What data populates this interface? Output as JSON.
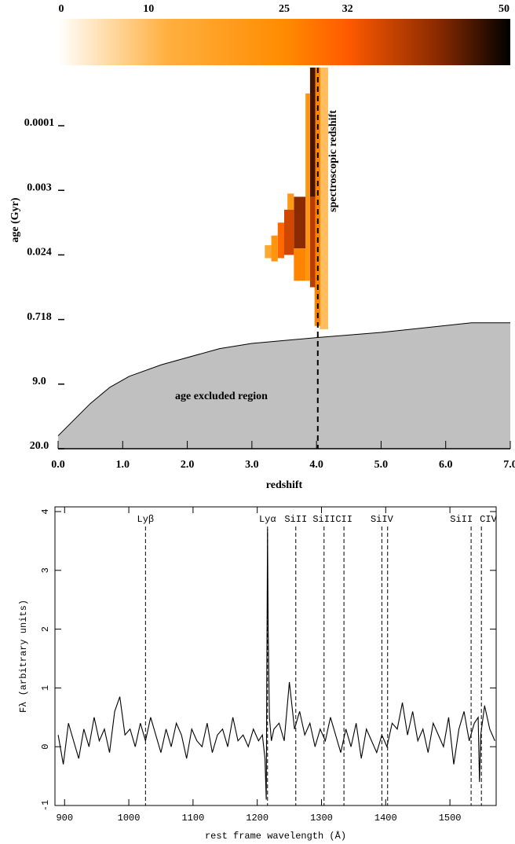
{
  "chart_data": [
    {
      "type": "heatmap",
      "xlabel": "redshift",
      "ylabel": "age (Gyr)",
      "xlim": [
        0,
        7
      ],
      "xticks": [
        {
          "value": 0,
          "label": "0.0"
        },
        {
          "value": 1,
          "label": "1.0"
        },
        {
          "value": 2,
          "label": "2.0"
        },
        {
          "value": 3,
          "label": "3.0"
        },
        {
          "value": 4,
          "label": "4.0"
        },
        {
          "value": 5,
          "label": "5.0"
        },
        {
          "value": 6,
          "label": "6.0"
        },
        {
          "value": 7,
          "label": "7.0"
        }
      ],
      "ylim": [
        0,
        5.9
      ],
      "yticks": [
        {
          "value": 0,
          "label": "20.0"
        },
        {
          "value": 1,
          "label": "9.0"
        },
        {
          "value": 2,
          "label": "0.718"
        },
        {
          "value": 3,
          "label": "0.024"
        },
        {
          "value": 4,
          "label": "0.003"
        },
        {
          "value": 5,
          "label": "0.0001"
        }
      ],
      "colorbar": {
        "lim": [
          0,
          50
        ],
        "ticks": [
          0,
          10,
          25,
          32,
          50
        ]
      },
      "colormap": [
        [
          0,
          "#ffffff"
        ],
        [
          12,
          "#ffb040"
        ],
        [
          25,
          "#ff8c00"
        ],
        [
          32,
          "#ff5a00"
        ],
        [
          42,
          "#8a2a00"
        ],
        [
          50,
          "#000000"
        ]
      ],
      "cells": [
        [
          4.05,
          4.18,
          1.85,
          5.9,
          10
        ],
        [
          3.97,
          4.06,
          1.9,
          5.9,
          26
        ],
        [
          3.9,
          3.98,
          3.9,
          5.9,
          46
        ],
        [
          3.9,
          3.98,
          2.5,
          3.9,
          38
        ],
        [
          3.83,
          3.9,
          2.6,
          5.5,
          22
        ],
        [
          3.65,
          3.83,
          3.1,
          3.9,
          42
        ],
        [
          3.65,
          3.83,
          2.6,
          3.1,
          26
        ],
        [
          3.55,
          3.65,
          3.7,
          3.95,
          20
        ],
        [
          3.5,
          3.65,
          3.0,
          3.7,
          36
        ],
        [
          3.4,
          3.5,
          2.95,
          3.5,
          30
        ],
        [
          3.3,
          3.4,
          2.9,
          3.3,
          22
        ],
        [
          3.2,
          3.3,
          2.95,
          3.15,
          15
        ]
      ],
      "excluded_region": {
        "label": "age excluded region",
        "z": [
          0,
          0.5,
          0.8,
          1.1,
          1.6,
          2.5,
          3.0,
          4.0,
          5.0,
          6.4,
          7.0
        ],
        "age": [
          0.2,
          0.7,
          0.95,
          1.12,
          1.3,
          1.55,
          1.63,
          1.72,
          1.8,
          1.95,
          1.95
        ]
      },
      "spectroscopic_redshift": {
        "label": "spectroscopic redshift",
        "value": 4.02
      }
    },
    {
      "type": "line",
      "xlabel": "rest frame wavelength (Å)",
      "ylabel": "Fλ (arbitrary units)",
      "xlim": [
        885,
        1572
      ],
      "xticks": [
        900,
        1000,
        1100,
        1200,
        1300,
        1400,
        1500
      ],
      "ylim": [
        -1,
        4.08
      ],
      "yticks": [
        -1,
        0,
        1,
        2,
        3,
        4
      ],
      "color": "#000000",
      "x": [
        890,
        898,
        906,
        914,
        922,
        930,
        938,
        946,
        954,
        962,
        970,
        978,
        986,
        994,
        1002,
        1010,
        1018,
        1026,
        1034,
        1042,
        1050,
        1058,
        1066,
        1074,
        1082,
        1090,
        1098,
        1106,
        1114,
        1122,
        1130,
        1138,
        1146,
        1154,
        1162,
        1170,
        1178,
        1186,
        1194,
        1202,
        1208,
        1212,
        1214,
        1215,
        1216,
        1217,
        1219,
        1222,
        1226,
        1234,
        1242,
        1250,
        1258,
        1266,
        1274,
        1282,
        1290,
        1298,
        1306,
        1314,
        1322,
        1330,
        1338,
        1346,
        1354,
        1362,
        1370,
        1378,
        1386,
        1394,
        1402,
        1410,
        1418,
        1426,
        1434,
        1442,
        1450,
        1458,
        1466,
        1474,
        1482,
        1490,
        1498,
        1506,
        1514,
        1522,
        1530,
        1538,
        1544,
        1546,
        1548,
        1554,
        1562,
        1570
      ],
      "values": [
        0.2,
        -0.3,
        0.4,
        0.1,
        -0.2,
        0.3,
        0.0,
        0.5,
        0.1,
        0.3,
        -0.1,
        0.6,
        0.85,
        0.2,
        0.3,
        0.0,
        0.4,
        0.1,
        0.5,
        0.2,
        -0.1,
        0.3,
        0.0,
        0.4,
        0.2,
        -0.2,
        0.3,
        0.1,
        0.0,
        0.4,
        -0.1,
        0.2,
        0.3,
        0.0,
        0.5,
        0.1,
        0.2,
        0.0,
        0.3,
        0.1,
        0.2,
        -0.2,
        -0.9,
        1.5,
        3.7,
        2.0,
        0.5,
        0.1,
        0.3,
        0.4,
        0.1,
        1.1,
        0.3,
        0.6,
        0.2,
        0.4,
        0.0,
        0.3,
        0.1,
        0.5,
        0.2,
        -0.1,
        0.3,
        0.0,
        0.4,
        -0.2,
        0.3,
        0.1,
        -0.1,
        0.2,
        0.0,
        0.4,
        0.3,
        0.75,
        0.2,
        0.6,
        0.1,
        0.3,
        -0.1,
        0.4,
        0.2,
        0.0,
        0.5,
        -0.3,
        0.3,
        0.6,
        0.1,
        0.4,
        0.5,
        -0.6,
        0.2,
        0.7,
        0.3,
        0.1
      ],
      "lines": [
        {
          "wavelength": 1026,
          "label": "Lyβ"
        },
        {
          "wavelength": 1216,
          "label": "Lyα"
        },
        {
          "wavelength": 1260,
          "label": "SiII"
        },
        {
          "wavelength": 1304,
          "label": "SiII"
        },
        {
          "wavelength": 1335,
          "label": "CII"
        },
        {
          "wavelength": 1394,
          "label": "SiIV"
        },
        {
          "wavelength": 1403,
          "label": null
        },
        {
          "wavelength": 1533,
          "label": "SiII"
        },
        {
          "wavelength": 1549,
          "label": "CIV"
        }
      ]
    }
  ]
}
